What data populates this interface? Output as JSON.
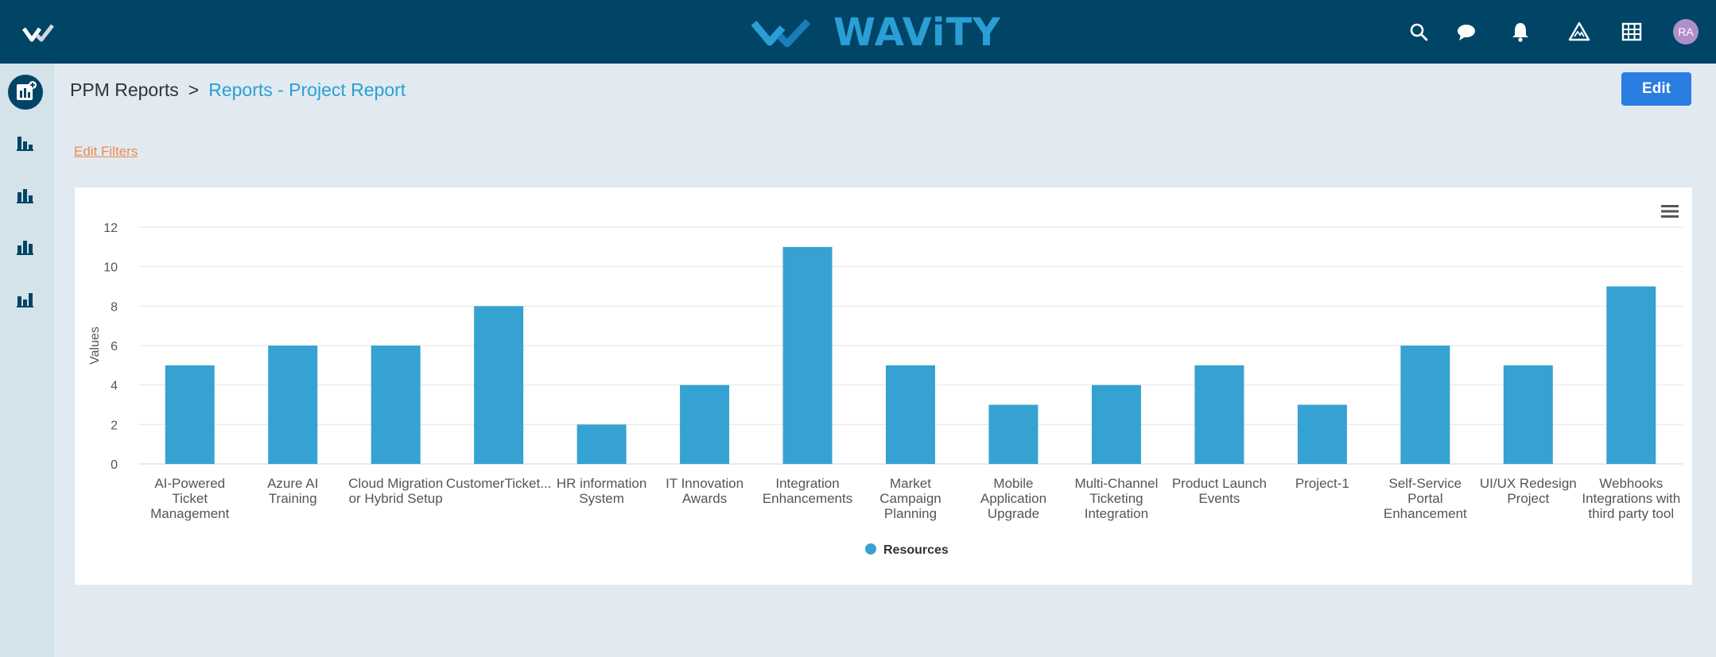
{
  "header": {
    "brand": "WAViTY",
    "avatar_initials": "RA",
    "icons": [
      "search-icon",
      "chat-icon",
      "bell-icon",
      "warning-icon",
      "grid-icon"
    ]
  },
  "sidebar": {
    "items": [
      "add-report-icon",
      "bar-chart-icon",
      "bar-chart-icon",
      "bar-chart-icon",
      "bar-chart-icon"
    ]
  },
  "breadcrumb": {
    "parent": "PPM Reports",
    "separator": ">",
    "current": "Reports - Project Report"
  },
  "toolbar": {
    "edit_label": "Edit"
  },
  "filters": {
    "edit_filters_label": "Edit Filters"
  },
  "colors": {
    "header": "#004466",
    "bar": "#36a2d2",
    "accent": "#2a9fd6",
    "link": "#f08a4b",
    "button": "#2a7de1"
  },
  "chart_data": {
    "type": "bar",
    "categories": [
      [
        "AI-Powered",
        "Ticket",
        "Management"
      ],
      [
        "Azure AI",
        "Training"
      ],
      [
        "Cloud Migration",
        "or Hybrid Setup"
      ],
      [
        "CustomerTicket..."
      ],
      [
        "HR information",
        "System"
      ],
      [
        "IT Innovation",
        "Awards"
      ],
      [
        "Integration",
        "Enhancements"
      ],
      [
        "Market",
        "Campaign",
        "Planning"
      ],
      [
        "Mobile",
        "Application",
        "Upgrade"
      ],
      [
        "Multi-Channel",
        "Ticketing",
        "Integration"
      ],
      [
        "Product Launch",
        "Events"
      ],
      [
        "Project-1"
      ],
      [
        "Self-Service",
        "Portal",
        "Enhancement"
      ],
      [
        "UI/UX Redesign",
        "Project"
      ],
      [
        "Webhooks",
        "Integrations with",
        "third party tool"
      ]
    ],
    "series": [
      {
        "name": "Resources",
        "values": [
          5,
          6,
          6,
          8,
          2,
          4,
          11,
          5,
          3,
          4,
          5,
          3,
          6,
          5,
          9
        ]
      }
    ],
    "ylabel": "Values",
    "ylim": [
      0,
      12
    ],
    "yticks": [
      0,
      2,
      4,
      6,
      8,
      10,
      12
    ],
    "grid": true,
    "legend": "bottom-center"
  }
}
